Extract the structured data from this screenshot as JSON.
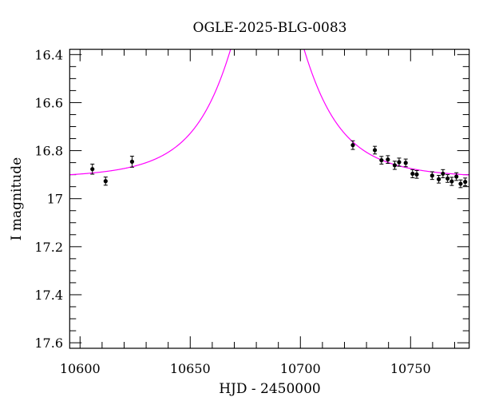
{
  "chart_data": {
    "type": "scatter",
    "title": "OGLE-2025-BLG-0083",
    "xlabel": "HJD - 2450000",
    "ylabel": "I magnitude",
    "xlim": [
      10595.3,
      10776.6
    ],
    "ylim": [
      17.623,
      16.378
    ],
    "y_inverted": true,
    "x_major_ticks": [
      10600,
      10650,
      10700,
      10750
    ],
    "x_tick_labels": [
      "10600",
      "10650",
      "10700",
      "10750"
    ],
    "x_minor_step": 10,
    "y_major_ticks": [
      16.4,
      16.6,
      16.8,
      17.0,
      17.2,
      17.4,
      17.6
    ],
    "y_tick_labels": [
      "16.4",
      "16.6",
      "16.8",
      "17",
      "17.2",
      "17.4",
      "17.6"
    ],
    "y_minor_step": 0.05,
    "grid": false,
    "colors": {
      "points": "#000000",
      "model": "#ff00ff"
    },
    "points": [
      {
        "x": 10605.6,
        "y": 16.877,
        "err": 0.021
      },
      {
        "x": 10611.6,
        "y": 16.927,
        "err": 0.017
      },
      {
        "x": 10623.6,
        "y": 16.846,
        "err": 0.023
      },
      {
        "x": 10723.8,
        "y": 16.777,
        "err": 0.018
      },
      {
        "x": 10733.8,
        "y": 16.798,
        "err": 0.016
      },
      {
        "x": 10736.8,
        "y": 16.84,
        "err": 0.016
      },
      {
        "x": 10739.7,
        "y": 16.837,
        "err": 0.016
      },
      {
        "x": 10742.8,
        "y": 16.861,
        "err": 0.017
      },
      {
        "x": 10744.8,
        "y": 16.848,
        "err": 0.017
      },
      {
        "x": 10747.8,
        "y": 16.851,
        "err": 0.016
      },
      {
        "x": 10750.9,
        "y": 16.896,
        "err": 0.017
      },
      {
        "x": 10752.8,
        "y": 16.899,
        "err": 0.016
      },
      {
        "x": 10759.8,
        "y": 16.904,
        "err": 0.016
      },
      {
        "x": 10762.8,
        "y": 16.919,
        "err": 0.016
      },
      {
        "x": 10764.7,
        "y": 16.896,
        "err": 0.017
      },
      {
        "x": 10766.8,
        "y": 16.916,
        "err": 0.016
      },
      {
        "x": 10768.7,
        "y": 16.928,
        "err": 0.017
      },
      {
        "x": 10770.8,
        "y": 16.908,
        "err": 0.016
      },
      {
        "x": 10772.7,
        "y": 16.938,
        "err": 0.016
      },
      {
        "x": 10774.8,
        "y": 16.93,
        "err": 0.016
      }
    ],
    "model": {
      "type": "point-lens",
      "t0": 10685,
      "tE": 28.3,
      "u0": 0.42,
      "I_base": 16.915
    }
  }
}
